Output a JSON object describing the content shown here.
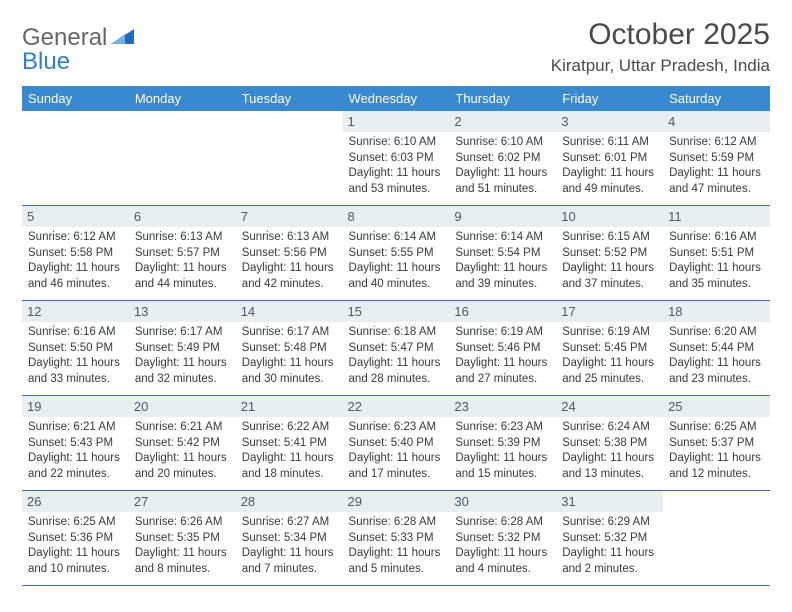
{
  "brand": {
    "part1": "General",
    "part2": "Blue"
  },
  "header": {
    "title": "October 2025",
    "location": "Kiratpur, Uttar Pradesh, India"
  },
  "colors": {
    "header_bg": "#3889cf",
    "daynum_bg": "#e9eef1",
    "rule": "#3f6fa5",
    "brand_blue": "#2f7fd1"
  },
  "weekdays": [
    "Sunday",
    "Monday",
    "Tuesday",
    "Wednesday",
    "Thursday",
    "Friday",
    "Saturday"
  ],
  "weeks": [
    [
      null,
      null,
      null,
      {
        "n": "1",
        "sr": "6:10 AM",
        "ss": "6:03 PM",
        "dl": "11 hours and 53 minutes."
      },
      {
        "n": "2",
        "sr": "6:10 AM",
        "ss": "6:02 PM",
        "dl": "11 hours and 51 minutes."
      },
      {
        "n": "3",
        "sr": "6:11 AM",
        "ss": "6:01 PM",
        "dl": "11 hours and 49 minutes."
      },
      {
        "n": "4",
        "sr": "6:12 AM",
        "ss": "5:59 PM",
        "dl": "11 hours and 47 minutes."
      }
    ],
    [
      {
        "n": "5",
        "sr": "6:12 AM",
        "ss": "5:58 PM",
        "dl": "11 hours and 46 minutes."
      },
      {
        "n": "6",
        "sr": "6:13 AM",
        "ss": "5:57 PM",
        "dl": "11 hours and 44 minutes."
      },
      {
        "n": "7",
        "sr": "6:13 AM",
        "ss": "5:56 PM",
        "dl": "11 hours and 42 minutes."
      },
      {
        "n": "8",
        "sr": "6:14 AM",
        "ss": "5:55 PM",
        "dl": "11 hours and 40 minutes."
      },
      {
        "n": "9",
        "sr": "6:14 AM",
        "ss": "5:54 PM",
        "dl": "11 hours and 39 minutes."
      },
      {
        "n": "10",
        "sr": "6:15 AM",
        "ss": "5:52 PM",
        "dl": "11 hours and 37 minutes."
      },
      {
        "n": "11",
        "sr": "6:16 AM",
        "ss": "5:51 PM",
        "dl": "11 hours and 35 minutes."
      }
    ],
    [
      {
        "n": "12",
        "sr": "6:16 AM",
        "ss": "5:50 PM",
        "dl": "11 hours and 33 minutes."
      },
      {
        "n": "13",
        "sr": "6:17 AM",
        "ss": "5:49 PM",
        "dl": "11 hours and 32 minutes."
      },
      {
        "n": "14",
        "sr": "6:17 AM",
        "ss": "5:48 PM",
        "dl": "11 hours and 30 minutes."
      },
      {
        "n": "15",
        "sr": "6:18 AM",
        "ss": "5:47 PM",
        "dl": "11 hours and 28 minutes."
      },
      {
        "n": "16",
        "sr": "6:19 AM",
        "ss": "5:46 PM",
        "dl": "11 hours and 27 minutes."
      },
      {
        "n": "17",
        "sr": "6:19 AM",
        "ss": "5:45 PM",
        "dl": "11 hours and 25 minutes."
      },
      {
        "n": "18",
        "sr": "6:20 AM",
        "ss": "5:44 PM",
        "dl": "11 hours and 23 minutes."
      }
    ],
    [
      {
        "n": "19",
        "sr": "6:21 AM",
        "ss": "5:43 PM",
        "dl": "11 hours and 22 minutes."
      },
      {
        "n": "20",
        "sr": "6:21 AM",
        "ss": "5:42 PM",
        "dl": "11 hours and 20 minutes."
      },
      {
        "n": "21",
        "sr": "6:22 AM",
        "ss": "5:41 PM",
        "dl": "11 hours and 18 minutes."
      },
      {
        "n": "22",
        "sr": "6:23 AM",
        "ss": "5:40 PM",
        "dl": "11 hours and 17 minutes."
      },
      {
        "n": "23",
        "sr": "6:23 AM",
        "ss": "5:39 PM",
        "dl": "11 hours and 15 minutes."
      },
      {
        "n": "24",
        "sr": "6:24 AM",
        "ss": "5:38 PM",
        "dl": "11 hours and 13 minutes."
      },
      {
        "n": "25",
        "sr": "6:25 AM",
        "ss": "5:37 PM",
        "dl": "11 hours and 12 minutes."
      }
    ],
    [
      {
        "n": "26",
        "sr": "6:25 AM",
        "ss": "5:36 PM",
        "dl": "11 hours and 10 minutes."
      },
      {
        "n": "27",
        "sr": "6:26 AM",
        "ss": "5:35 PM",
        "dl": "11 hours and 8 minutes."
      },
      {
        "n": "28",
        "sr": "6:27 AM",
        "ss": "5:34 PM",
        "dl": "11 hours and 7 minutes."
      },
      {
        "n": "29",
        "sr": "6:28 AM",
        "ss": "5:33 PM",
        "dl": "11 hours and 5 minutes."
      },
      {
        "n": "30",
        "sr": "6:28 AM",
        "ss": "5:32 PM",
        "dl": "11 hours and 4 minutes."
      },
      {
        "n": "31",
        "sr": "6:29 AM",
        "ss": "5:32 PM",
        "dl": "11 hours and 2 minutes."
      },
      null
    ]
  ],
  "labels": {
    "sunrise": "Sunrise:",
    "sunset": "Sunset:",
    "daylight": "Daylight:"
  }
}
